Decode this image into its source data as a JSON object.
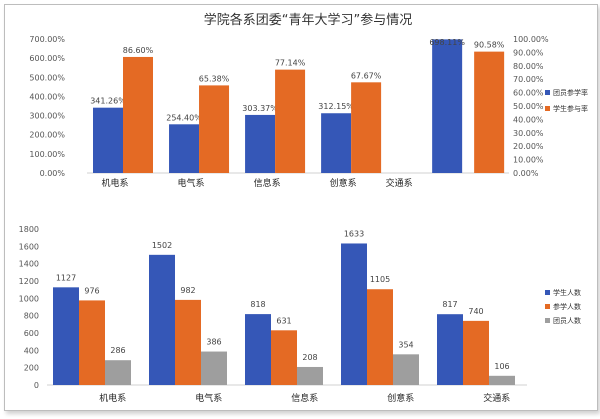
{
  "chart_data": [
    {
      "type": "bar",
      "title": "学院各系团委“青年大学习”参与情况",
      "categories": [
        "机电系",
        "电气系",
        "信息系",
        "创意系",
        "交通系"
      ],
      "series": [
        {
          "name": "团员参学率",
          "axis": "left",
          "values": [
            341.26,
            254.4,
            303.37,
            312.15,
            698.11
          ],
          "labels": [
            "341.26%",
            "254.40%",
            "303.37%",
            "312.15%",
            "698.11%"
          ],
          "color": "#3557b7"
        },
        {
          "name": "学生参与率",
          "axis": "right",
          "values": [
            86.6,
            65.38,
            77.14,
            67.67,
            90.58
          ],
          "labels": [
            "86.60%",
            "65.38%",
            "77.14%",
            "67.67%",
            "90.58%"
          ],
          "color": "#e46a24"
        }
      ],
      "ylim_left": [
        0,
        700
      ],
      "ylim_right": [
        0,
        100
      ],
      "yticks_left": [
        "0.00%",
        "100.00%",
        "200.00%",
        "300.00%",
        "400.00%",
        "500.00%",
        "600.00%",
        "700.00%"
      ],
      "yticks_right": [
        "0.00%",
        "10.00%",
        "20.00%",
        "30.00%",
        "40.00%",
        "50.00%",
        "60.00%",
        "70.00%",
        "80.00%",
        "90.00%",
        "100.00%"
      ],
      "legend_position": "right",
      "grid": false
    },
    {
      "type": "bar",
      "categories": [
        "机电系",
        "电气系",
        "信息系",
        "创意系",
        "交通系"
      ],
      "series": [
        {
          "name": "学生人数",
          "values": [
            1127,
            1502,
            818,
            1633,
            817
          ],
          "color": "#3557b7"
        },
        {
          "name": "参学人数",
          "values": [
            976,
            982,
            631,
            1105,
            740
          ],
          "color": "#e46a24"
        },
        {
          "name": "团员人数",
          "values": [
            286,
            386,
            208,
            354,
            106
          ],
          "color": "#9e9e9e"
        }
      ],
      "ylim": [
        0,
        1800
      ],
      "yticks": [
        "0",
        "200",
        "400",
        "600",
        "800",
        "1000",
        "1200",
        "1400",
        "1600",
        "1800"
      ],
      "legend_position": "right",
      "grid": false
    }
  ]
}
